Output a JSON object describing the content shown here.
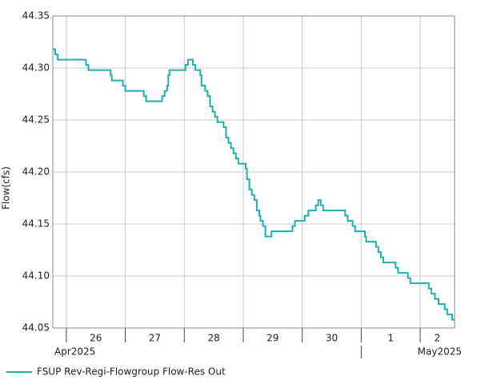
{
  "chart_data": {
    "type": "line",
    "step": true,
    "y_label": "Flow(cfs)",
    "grid": true,
    "legend": "bottom-left",
    "ylim": [
      44.05,
      44.35
    ],
    "yticks": [
      44.05,
      {
        "value": 44.1,
        "label": "44.10"
      },
      44.15,
      {
        "value": 44.2,
        "label": "44.20"
      },
      44.25,
      {
        "value": 44.3,
        "label": "44.30"
      },
      44.35
    ],
    "xlim": [
      "2025-04-25T18:30",
      "2025-05-02T14:00"
    ],
    "xticks": [
      {
        "value": "2025-04-26T00:00",
        "label": "26"
      },
      {
        "value": "2025-04-27T00:00",
        "label": "27"
      },
      {
        "value": "2025-04-28T00:00",
        "label": "28"
      },
      {
        "value": "2025-04-29T00:00",
        "label": "29"
      },
      {
        "value": "2025-04-30T00:00",
        "label": "30"
      },
      {
        "value": "2025-05-01T00:00",
        "label": "1"
      },
      {
        "value": "2025-05-02T00:00",
        "label": "2"
      }
    ],
    "x_group_labels": [
      {
        "value": "2025-04-25T18:30",
        "label": "Apr2025"
      },
      {
        "value": "2025-05-01T00:00",
        "label": "May2025"
      }
    ],
    "x": [
      "2025-04-25T18:30",
      "2025-04-25T19:30",
      "2025-04-25T20:30",
      "2025-04-26T08:00",
      "2025-04-26T09:00",
      "2025-04-26T18:00",
      "2025-04-26T18:30",
      "2025-04-26T23:00",
      "2025-04-27T00:00",
      "2025-04-27T07:30",
      "2025-04-27T08:30",
      "2025-04-27T15:00",
      "2025-04-27T16:00",
      "2025-04-27T17:00",
      "2025-04-27T17:30",
      "2025-04-27T18:00",
      "2025-04-28T00:30",
      "2025-04-28T01:30",
      "2025-04-28T03:30",
      "2025-04-28T04:30",
      "2025-04-28T06:30",
      "2025-04-28T07:00",
      "2025-04-28T08:30",
      "2025-04-28T09:30",
      "2025-04-28T10:30",
      "2025-04-28T11:30",
      "2025-04-28T12:30",
      "2025-04-28T13:30",
      "2025-04-28T16:00",
      "2025-04-28T17:00",
      "2025-04-28T18:00",
      "2025-04-28T19:00",
      "2025-04-28T20:00",
      "2025-04-28T21:00",
      "2025-04-28T22:00",
      "2025-04-29T01:00",
      "2025-04-29T01:30",
      "2025-04-29T02:30",
      "2025-04-29T03:30",
      "2025-04-29T04:30",
      "2025-04-29T05:30",
      "2025-04-29T06:30",
      "2025-04-29T07:00",
      "2025-04-29T08:00",
      "2025-04-29T09:00",
      "2025-04-29T11:30",
      "2025-04-29T20:00",
      "2025-04-29T21:00",
      "2025-04-30T01:00",
      "2025-04-30T02:30",
      "2025-04-30T05:30",
      "2025-04-30T06:30",
      "2025-04-30T07:30",
      "2025-04-30T08:30",
      "2025-04-30T17:30",
      "2025-04-30T18:30",
      "2025-04-30T20:30",
      "2025-04-30T21:30",
      "2025-05-01T01:30",
      "2025-05-01T02:00",
      "2025-05-01T06:00",
      "2025-05-01T07:00",
      "2025-05-01T08:00",
      "2025-05-01T09:00",
      "2025-05-01T14:00",
      "2025-05-01T15:00",
      "2025-05-01T19:00",
      "2025-05-01T20:00",
      "2025-05-02T03:30",
      "2025-05-02T04:30",
      "2025-05-02T06:00",
      "2025-05-02T07:30",
      "2025-05-02T10:00",
      "2025-05-02T11:00",
      "2025-05-02T13:00"
    ],
    "series": [
      {
        "name": "FSUP Rev-Regi-Flowgroup Flow-Res Out",
        "color": "#1fb0ac",
        "values": [
          44.318,
          44.313,
          44.308,
          44.303,
          44.298,
          44.293,
          44.288,
          44.283,
          44.278,
          44.273,
          44.268,
          44.273,
          44.278,
          44.283,
          44.293,
          44.298,
          44.303,
          44.308,
          44.303,
          44.298,
          44.293,
          44.283,
          44.278,
          44.273,
          44.263,
          44.258,
          44.253,
          44.248,
          44.243,
          44.233,
          44.228,
          44.223,
          44.218,
          44.213,
          44.208,
          44.203,
          44.193,
          44.183,
          44.178,
          44.173,
          44.163,
          44.158,
          44.153,
          44.148,
          44.138,
          44.143,
          44.148,
          44.153,
          44.158,
          44.163,
          44.168,
          44.173,
          44.168,
          44.163,
          44.158,
          44.153,
          44.148,
          44.143,
          44.138,
          44.133,
          44.128,
          44.123,
          44.118,
          44.113,
          44.108,
          44.103,
          44.098,
          44.093,
          44.088,
          44.083,
          44.078,
          44.073,
          44.068,
          44.063,
          44.058
        ]
      }
    ]
  }
}
